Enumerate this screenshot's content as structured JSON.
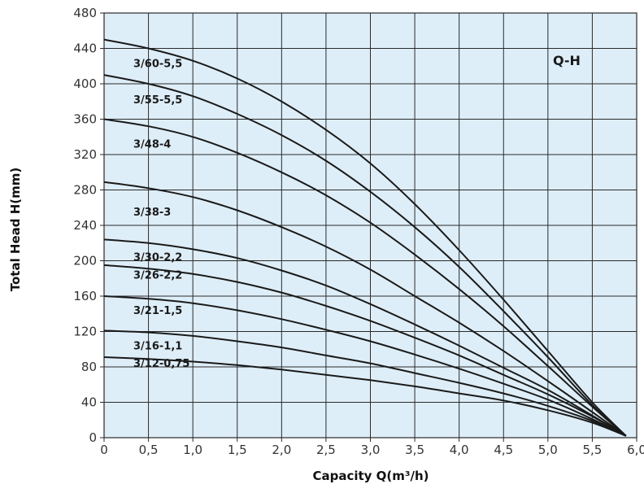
{
  "chart_data": {
    "type": "line",
    "title": "",
    "xlabel": "Capacity Q(m³/h)",
    "ylabel": "Total Head H(mm)",
    "xlim": [
      0,
      6.0
    ],
    "ylim": [
      0,
      480
    ],
    "x_ticks": [
      "0",
      "0,5",
      "1,0",
      "1,5",
      "2,0",
      "2,5",
      "3,0",
      "3,5",
      "4,0",
      "4,5",
      "5,0",
      "5,5",
      "6,0"
    ],
    "y_ticks": [
      "0",
      "40",
      "80",
      "120",
      "160",
      "200",
      "240",
      "280",
      "320",
      "360",
      "400",
      "440",
      "480"
    ],
    "grid": true,
    "plot_background": "#deeef8",
    "line_color": "#1a1a1a",
    "annotation": "Q-H",
    "x": [
      0,
      0.5,
      1.0,
      1.5,
      2.0,
      2.5,
      3.0,
      3.5,
      4.0,
      4.5,
      5.0,
      5.5,
      5.88
    ],
    "series": [
      {
        "name": "3/60-5,5",
        "label_at": [
          0.33,
          419
        ],
        "values": [
          450,
          440,
          426,
          406,
          380,
          348,
          310,
          264,
          212,
          156,
          98,
          40,
          2
        ]
      },
      {
        "name": "3/55-5,5",
        "label_at": [
          0.33,
          378
        ],
        "values": [
          410,
          400,
          386,
          366,
          342,
          313,
          278,
          238,
          193,
          143,
          91,
          37,
          2
        ]
      },
      {
        "name": "3/48-4",
        "label_at": [
          0.33,
          328
        ],
        "values": [
          360,
          352,
          340,
          322,
          300,
          274,
          243,
          207,
          168,
          126,
          81,
          35,
          2
        ]
      },
      {
        "name": "3/38-3",
        "label_at": [
          0.33,
          251
        ],
        "values": [
          289,
          282,
          272,
          257,
          238,
          216,
          190,
          160,
          130,
          98,
          64,
          29,
          2
        ]
      },
      {
        "name": "3/30-2,2",
        "label_at": [
          0.33,
          200
        ],
        "values": [
          224,
          220,
          213,
          203,
          189,
          172,
          151,
          128,
          104,
          79,
          54,
          25,
          2
        ]
      },
      {
        "name": "3/26-2,2",
        "label_at": [
          0.33,
          180
        ],
        "values": [
          195,
          191,
          185,
          176,
          164,
          149,
          132,
          113,
          93,
          71,
          49,
          24,
          2
        ]
      },
      {
        "name": "3/21-1,5",
        "label_at": [
          0.33,
          140
        ],
        "values": [
          160,
          157,
          152,
          144,
          134,
          122,
          109,
          94,
          78,
          61,
          43,
          21,
          2
        ]
      },
      {
        "name": "3/16-1,1",
        "label_at": [
          0.33,
          100
        ],
        "values": [
          121,
          119,
          115,
          109,
          102,
          93,
          84,
          73,
          62,
          50,
          36,
          19,
          2
        ]
      },
      {
        "name": "3/12-0,75",
        "label_at": [
          0.33,
          80
        ],
        "values": [
          91,
          89,
          86,
          82,
          77,
          71,
          65,
          58,
          50,
          42,
          31,
          17,
          2
        ]
      }
    ]
  }
}
